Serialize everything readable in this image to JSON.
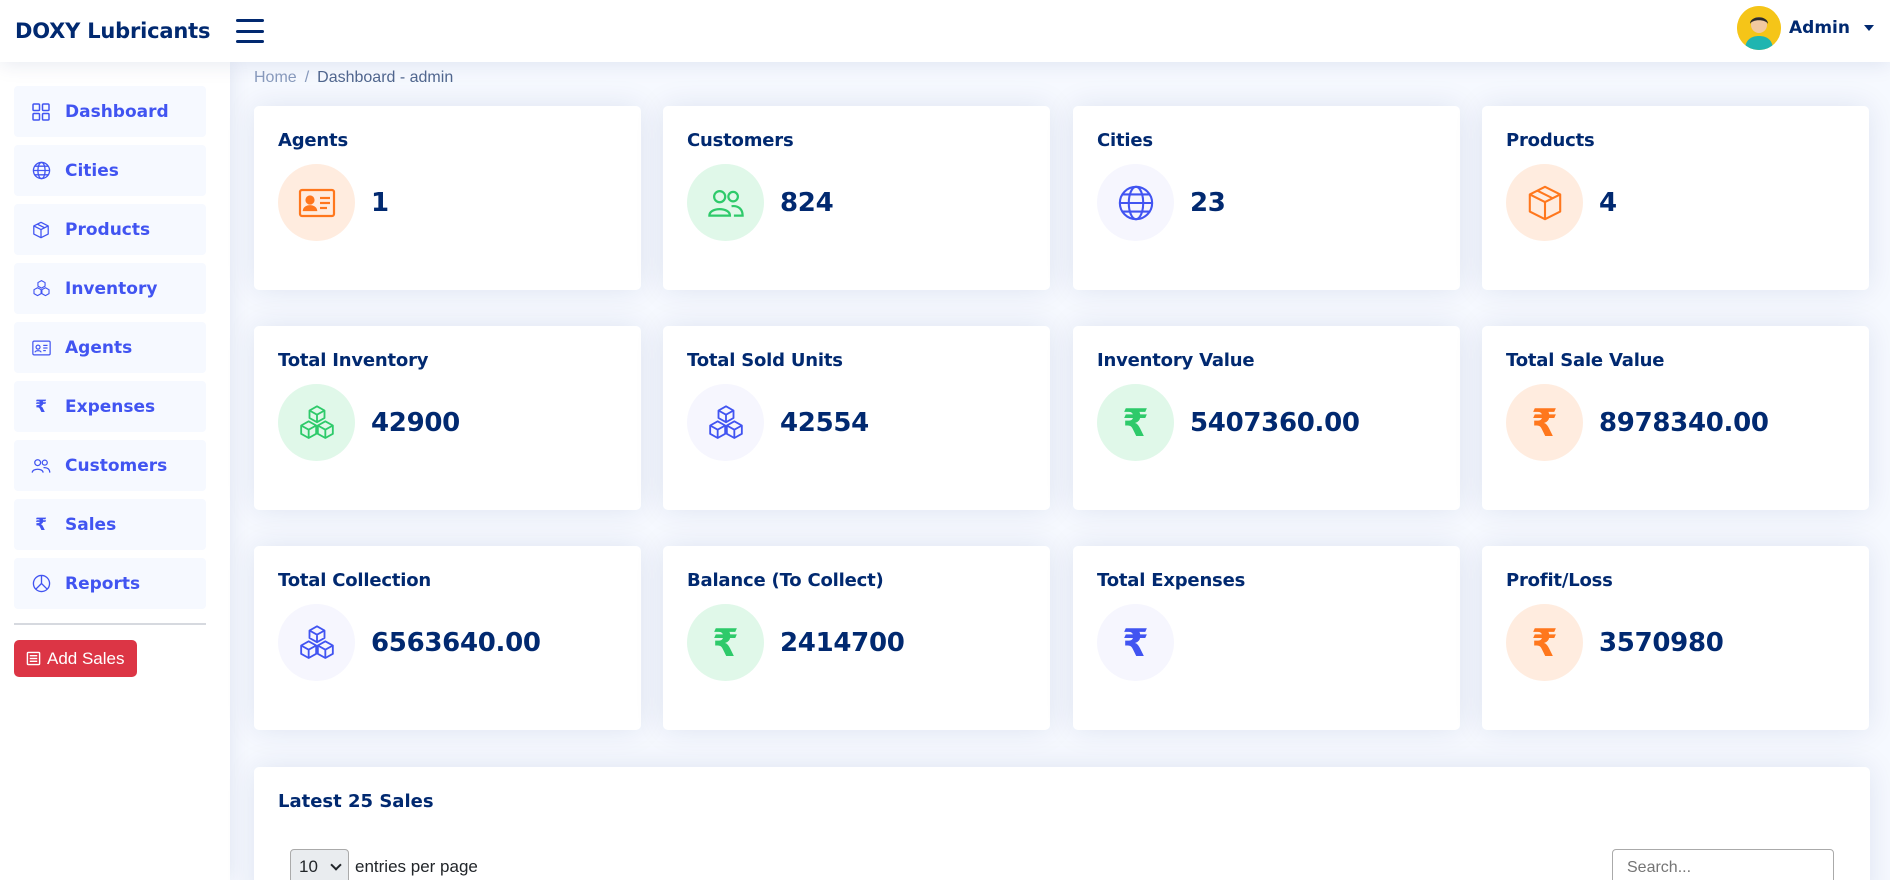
{
  "header": {
    "logo": "DOXY Lubricants",
    "user_name": "Admin"
  },
  "sidebar": {
    "items": [
      {
        "label": "Dashboard",
        "icon": "grid-icon"
      },
      {
        "label": "Cities",
        "icon": "globe-icon"
      },
      {
        "label": "Products",
        "icon": "box-icon"
      },
      {
        "label": "Inventory",
        "icon": "boxes-icon"
      },
      {
        "label": "Agents",
        "icon": "id-card-icon"
      },
      {
        "label": "Expenses",
        "icon": "rupee-icon"
      },
      {
        "label": "Customers",
        "icon": "people-icon"
      },
      {
        "label": "Sales",
        "icon": "rupee-icon"
      },
      {
        "label": "Reports",
        "icon": "pie-chart-icon"
      }
    ],
    "add_sales_label": "Add Sales"
  },
  "breadcrumb": {
    "home": "Home",
    "separator": "/",
    "current": "Dashboard - admin"
  },
  "cards": [
    {
      "title": "Agents",
      "value": "1",
      "icon": "id-card-icon",
      "tone": "orange"
    },
    {
      "title": "Customers",
      "value": "824",
      "icon": "people-icon",
      "tone": "green"
    },
    {
      "title": "Cities",
      "value": "23",
      "icon": "globe-icon",
      "tone": "blue"
    },
    {
      "title": "Products",
      "value": "4",
      "icon": "box-icon",
      "tone": "orange"
    },
    {
      "title": "Total Inventory",
      "value": "42900",
      "icon": "boxes-icon",
      "tone": "green"
    },
    {
      "title": "Total Sold Units",
      "value": "42554",
      "icon": "boxes-icon",
      "tone": "blue"
    },
    {
      "title": "Inventory Value",
      "value": "5407360.00",
      "icon": "rupee-icon",
      "tone": "green"
    },
    {
      "title": "Total Sale Value",
      "value": "8978340.00",
      "icon": "rupee-icon",
      "tone": "orange"
    },
    {
      "title": "Total Collection",
      "value": "6563640.00",
      "icon": "boxes-icon",
      "tone": "blue"
    },
    {
      "title": "Balance (To Collect)",
      "value": "2414700",
      "icon": "rupee-icon",
      "tone": "green"
    },
    {
      "title": "Total Expenses",
      "value": "",
      "icon": "rupee-icon",
      "tone": "blue"
    },
    {
      "title": "Profit/Loss",
      "value": "3570980",
      "icon": "rupee-icon",
      "tone": "orange"
    }
  ],
  "colors": {
    "primary": "#4154f1",
    "navy": "#012970",
    "orange": "#ff771d",
    "green": "#2eca6a",
    "danger": "#dc3545"
  },
  "latest_sales": {
    "title": "Latest 25 Sales",
    "page_size": "10",
    "entries_label": "entries per page",
    "search_placeholder": "Search..."
  }
}
